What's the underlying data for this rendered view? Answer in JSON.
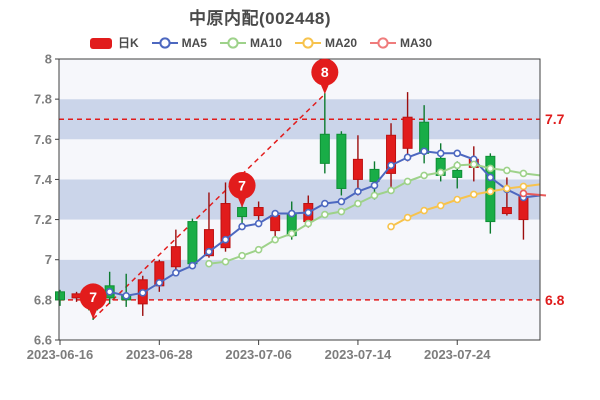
{
  "title": "中原内配(002448)",
  "legend": {
    "items": [
      {
        "label": "日K",
        "type": "rect",
        "color": "#e11c1c"
      },
      {
        "label": "MA5",
        "type": "line",
        "color": "#4d68c0"
      },
      {
        "label": "MA10",
        "type": "line",
        "color": "#9ed28a"
      },
      {
        "label": "MA20",
        "type": "line",
        "color": "#f7c34d"
      },
      {
        "label": "MA30",
        "type": "line",
        "color": "#ef7c7c"
      }
    ]
  },
  "chart_data": {
    "type": "candlestick",
    "title": "中原内配(002448)",
    "y_axis": {
      "min": 6.6,
      "max": 8.0,
      "ticks": [
        {
          "v": 6.6,
          "label": "6.6"
        },
        {
          "v": 6.8,
          "label": "6.8"
        },
        {
          "v": 7.0,
          "label": "7"
        },
        {
          "v": 7.2,
          "label": "7.2"
        },
        {
          "v": 7.4,
          "label": "7.4"
        },
        {
          "v": 7.6,
          "label": "7.6"
        },
        {
          "v": 7.8,
          "label": "7.8"
        },
        {
          "v": 8.0,
          "label": "8"
        }
      ]
    },
    "x_axis": {
      "tick_labels": [
        {
          "index": 0,
          "label": "2023-06-16"
        },
        {
          "index": 6,
          "label": "2023-06-28"
        },
        {
          "index": 12,
          "label": "2023-07-06"
        },
        {
          "index": 18,
          "label": "2023-07-14"
        },
        {
          "index": 24,
          "label": "2023-07-24"
        }
      ]
    },
    "band_colors": {
      "blue": "#cbd5ea",
      "light": "#f6f7fb"
    },
    "colors": {
      "up_fill": "#e11c1c",
      "up_stroke": "#bd1111",
      "up_wick": "#9c0d0d",
      "down_fill": "#19ad47",
      "down_stroke": "#0e8f35",
      "down_wick": "#0c7a2e",
      "dashed": "#e21c1c",
      "axis_text": "#7d7d7d",
      "spine": "#3f3f3f",
      "right_label": "#e01c1c"
    },
    "candles": [
      {
        "o": 6.84,
        "c": 6.8,
        "h": 6.85,
        "l": 6.77,
        "color": "green"
      },
      {
        "o": 6.81,
        "c": 6.83,
        "h": 6.84,
        "l": 6.79,
        "color": "red"
      },
      {
        "o": 6.82,
        "c": 6.75,
        "h": 6.83,
        "l": 6.7,
        "color": "green"
      },
      {
        "o": 6.87,
        "c": 6.81,
        "h": 6.94,
        "l": 6.78,
        "color": "green"
      },
      {
        "o": 6.82,
        "c": 6.8,
        "h": 6.93,
        "l": 6.765,
        "color": "green"
      },
      {
        "o": 6.78,
        "c": 6.9,
        "h": 6.92,
        "l": 6.72,
        "color": "red"
      },
      {
        "o": 6.87,
        "c": 6.99,
        "h": 7.0,
        "l": 6.84,
        "color": "red"
      },
      {
        "o": 6.965,
        "c": 7.065,
        "h": 7.15,
        "l": 6.93,
        "color": "red"
      },
      {
        "o": 7.19,
        "c": 6.98,
        "h": 7.205,
        "l": 6.955,
        "color": "green"
      },
      {
        "o": 7.02,
        "c": 7.15,
        "h": 7.335,
        "l": 7.01,
        "color": "red"
      },
      {
        "o": 7.06,
        "c": 7.28,
        "h": 7.385,
        "l": 7.04,
        "color": "red"
      },
      {
        "o": 7.26,
        "c": 7.215,
        "h": 7.27,
        "l": 7.15,
        "color": "green"
      },
      {
        "o": 7.22,
        "c": 7.26,
        "h": 7.29,
        "l": 7.17,
        "color": "red"
      },
      {
        "o": 7.145,
        "c": 7.22,
        "h": 7.235,
        "l": 7.115,
        "color": "red"
      },
      {
        "o": 7.23,
        "c": 7.12,
        "h": 7.29,
        "l": 7.1,
        "color": "green"
      },
      {
        "o": 7.19,
        "c": 7.28,
        "h": 7.32,
        "l": 7.16,
        "color": "red"
      },
      {
        "o": 7.625,
        "c": 7.48,
        "h": 7.83,
        "l": 7.43,
        "color": "green"
      },
      {
        "o": 7.625,
        "c": 7.355,
        "h": 7.64,
        "l": 7.32,
        "color": "green"
      },
      {
        "o": 7.4,
        "c": 7.5,
        "h": 7.62,
        "l": 7.32,
        "color": "red"
      },
      {
        "o": 7.45,
        "c": 7.39,
        "h": 7.49,
        "l": 7.3,
        "color": "green"
      },
      {
        "o": 7.43,
        "c": 7.62,
        "h": 7.68,
        "l": 7.36,
        "color": "red"
      },
      {
        "o": 7.555,
        "c": 7.71,
        "h": 7.835,
        "l": 7.49,
        "color": "red"
      },
      {
        "o": 7.685,
        "c": 7.53,
        "h": 7.77,
        "l": 7.48,
        "color": "green"
      },
      {
        "o": 7.505,
        "c": 7.42,
        "h": 7.58,
        "l": 7.39,
        "color": "green"
      },
      {
        "o": 7.445,
        "c": 7.41,
        "h": 7.49,
        "l": 7.355,
        "color": "green"
      },
      {
        "o": 7.46,
        "c": 7.5,
        "h": 7.565,
        "l": 7.39,
        "color": "red"
      },
      {
        "o": 7.515,
        "c": 7.19,
        "h": 7.53,
        "l": 7.13,
        "color": "green"
      },
      {
        "o": 7.23,
        "c": 7.26,
        "h": 7.41,
        "l": 7.22,
        "color": "red"
      },
      {
        "o": 7.2,
        "c": 7.315,
        "h": 7.335,
        "l": 7.1,
        "color": "red"
      }
    ],
    "ma_series": [
      {
        "name": "MA5",
        "color": "#4d68c0",
        "start_index": 3,
        "edge_value": 7.32,
        "values": [
          6.84,
          6.82,
          6.835,
          6.885,
          6.935,
          6.97,
          7.04,
          7.1,
          7.165,
          7.18,
          7.23,
          7.23,
          7.235,
          7.28,
          7.29,
          7.34,
          7.37,
          7.47,
          7.51,
          7.54,
          7.53,
          7.53,
          7.5,
          7.41,
          7.35,
          7.31
        ]
      },
      {
        "name": "MA10",
        "color": "#9ed28a",
        "start_index": 9,
        "edge_value": 7.42,
        "values": [
          6.98,
          6.99,
          7.02,
          7.05,
          7.1,
          7.13,
          7.18,
          7.225,
          7.24,
          7.28,
          7.32,
          7.345,
          7.39,
          7.42,
          7.435,
          7.47,
          7.475,
          7.455,
          7.445,
          7.43
        ]
      },
      {
        "name": "MA20",
        "color": "#f7c34d",
        "start_index": 20,
        "edge_value": 7.375,
        "values": [
          7.165,
          7.21,
          7.245,
          7.27,
          7.3,
          7.325,
          7.34,
          7.355,
          7.365
        ]
      },
      {
        "name": "MA30",
        "color": "#e85b5b",
        "start_index": 28,
        "edge_value": 7.32,
        "values": [
          7.33
        ]
      }
    ],
    "reference_lines": [
      {
        "price": 7.7,
        "label": "7.7"
      },
      {
        "price": 6.8,
        "label": "6.8"
      }
    ],
    "trendline": {
      "from_index": 2,
      "from_price": 6.705,
      "to_index": 16,
      "to_price": 7.825
    },
    "balloons": [
      {
        "label": "7",
        "index": 2,
        "tip_price": 6.705
      },
      {
        "label": "7",
        "index": 11,
        "tip_price": 7.26
      },
      {
        "label": "8",
        "index": 16,
        "tip_price": 7.825
      }
    ]
  }
}
